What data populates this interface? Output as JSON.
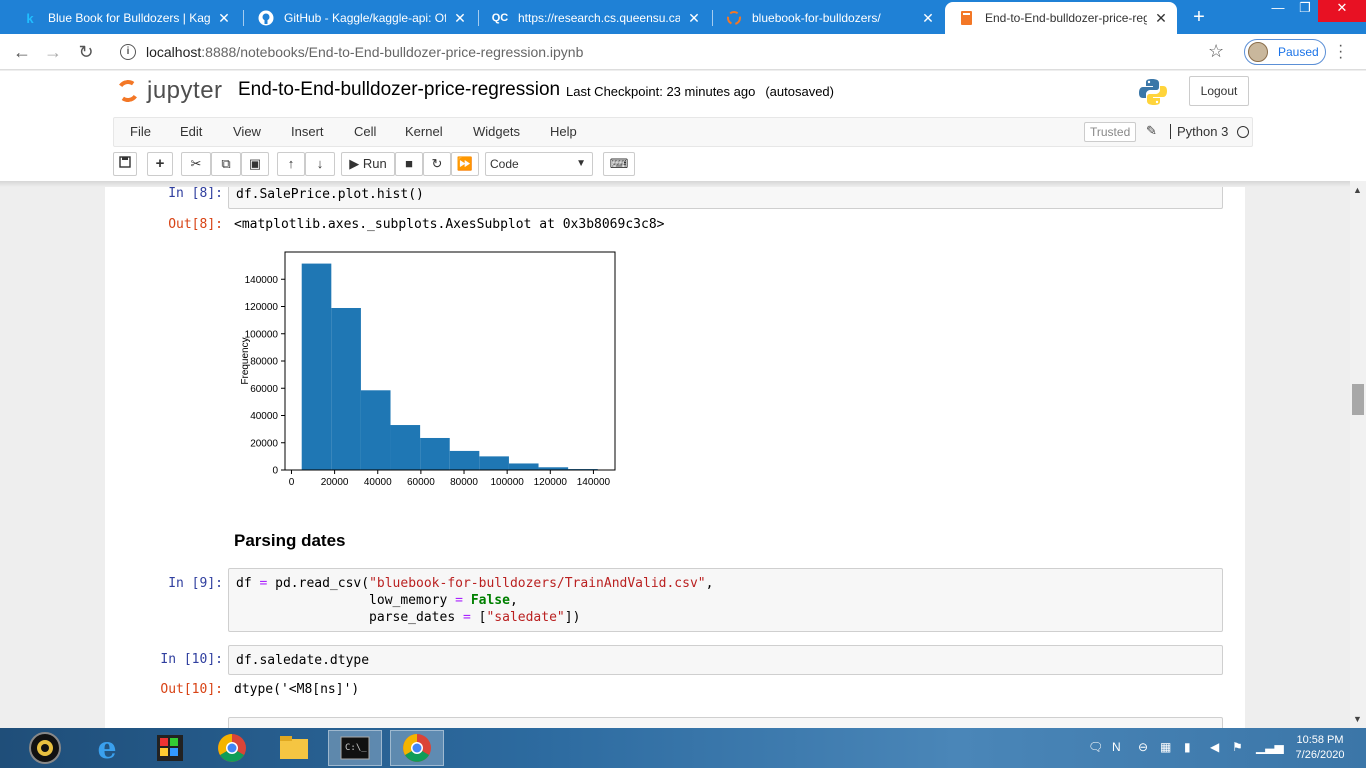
{
  "browser": {
    "tabs": [
      {
        "title": "Blue Book for Bulldozers | Kaggle",
        "favicon": "kaggle-icon"
      },
      {
        "title": "GitHub - Kaggle/kaggle-api: Offi",
        "favicon": "github-icon"
      },
      {
        "title": "https://research.cs.queensu.ca/h",
        "favicon": "queens-icon"
      },
      {
        "title": "bluebook-for-bulldozers/",
        "favicon": "jupyter-icon"
      },
      {
        "title": "End-to-End-bulldozer-price-reg",
        "favicon": "notebook-icon"
      }
    ],
    "address": {
      "host": "localhost",
      "path": ":8888/notebooks/End-to-End-bulldozer-price-regression.ipynb"
    },
    "profile_label": "Paused"
  },
  "jupyter": {
    "logo_text": "jupyter",
    "notebook_title": "End-to-End-bulldozer-price-regression",
    "checkpoint": "Last Checkpoint: 23 minutes ago",
    "autosave": "(autosaved)",
    "logout_label": "Logout",
    "menu": [
      "File",
      "Edit",
      "View",
      "Insert",
      "Cell",
      "Kernel",
      "Widgets",
      "Help"
    ],
    "trusted_label": "Trusted",
    "kernel_name": "Python 3",
    "toolbar": {
      "run_label": "Run",
      "cell_type": "Code"
    }
  },
  "cells": {
    "c8": {
      "in_prompt": "In [8]:",
      "out_prompt": "Out[8]:",
      "output_text": "<matplotlib.axes._subplots.AxesSubplot at 0x3b8069c3c8>"
    },
    "heading": "Parsing dates",
    "c9": {
      "in_prompt": "In [9]:"
    },
    "c10": {
      "in_prompt": "In [10]:",
      "code": "df.saledate.dtype",
      "out_prompt": "Out[10]:",
      "output_text": "dtype('<M8[ns]')"
    }
  },
  "chart_data": {
    "type": "bar",
    "title": "",
    "xlabel": "",
    "ylabel": "Frequency",
    "xlim": [
      -3000,
      150000
    ],
    "ylim": [
      0,
      160000
    ],
    "x_ticks": [
      0,
      20000,
      40000,
      60000,
      80000,
      100000,
      120000,
      140000
    ],
    "y_ticks": [
      0,
      20000,
      40000,
      60000,
      80000,
      100000,
      120000,
      140000
    ],
    "bin_edges": [
      4750,
      18475,
      32200,
      45925,
      59650,
      73375,
      87100,
      100825,
      114550,
      128275,
      142000
    ],
    "values": [
      151500,
      118900,
      58500,
      33000,
      23500,
      14000,
      10000,
      4800,
      2000,
      700
    ],
    "color": "#1f77b4"
  },
  "taskbar": {
    "time": "10:58 PM",
    "date": "7/26/2020"
  }
}
